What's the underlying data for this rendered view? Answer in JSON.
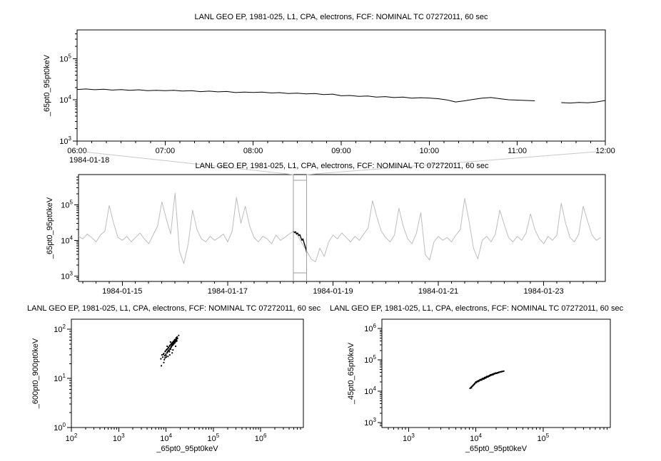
{
  "window": {
    "background": "#ffffff"
  },
  "connector_color": "#c8c8c8",
  "chart_data": [
    {
      "id": "zoom-timeseries",
      "type": "line",
      "title": "LANL GEO EP, 1981-025, L1, CPA, electrons, FCF: NOMINAL TC 07272011, 60 sec",
      "ylabel": "_65pt0_95pt0keV",
      "context_date": "1984-01-18",
      "legend": "off",
      "grid": "off",
      "x_axis": {
        "type": "linear",
        "min": 6,
        "max": 12,
        "minor_step": 0.16667,
        "ticks": [
          {
            "v": 6,
            "label": "06:00"
          },
          {
            "v": 7,
            "label": "07:00"
          },
          {
            "v": 8,
            "label": "08:00"
          },
          {
            "v": 9,
            "label": "09:00"
          },
          {
            "v": 10,
            "label": "10:00"
          },
          {
            "v": 11,
            "label": "11:00"
          },
          {
            "v": 12,
            "label": "12:00"
          }
        ]
      },
      "y_axis": {
        "type": "log",
        "min": 1000,
        "max": 500000,
        "tick_exponents": [
          3,
          4,
          5
        ]
      },
      "series": [
        {
          "name": "_65pt0_95pt0keV",
          "type": "line",
          "color": "#000000",
          "width": 1,
          "x_start": 6.0,
          "x_step": 0.1,
          "values": [
            17900,
            18400,
            17700,
            18100,
            17300,
            17800,
            17100,
            17600,
            16700,
            17100,
            16800,
            17100,
            16400,
            16700,
            15900,
            16300,
            15700,
            16000,
            15100,
            15500,
            15200,
            15500,
            14800,
            15000,
            14300,
            14600,
            14000,
            14300,
            13500,
            13800,
            12600,
            12800,
            12200,
            12400,
            11700,
            12000,
            11400,
            11700,
            11000,
            11300,
            11100,
            10700,
            10000,
            8900,
            9500,
            10300,
            11000,
            11400,
            10700,
            10100,
            9900,
            9700,
            9500,
            null,
            null,
            8600,
            8400,
            8700,
            8500,
            8900,
            9700
          ]
        }
      ]
    },
    {
      "id": "context-overview",
      "type": "line",
      "title": "LANL GEO EP, 1981-025, L1, CPA, electrons, FCF: NOMINAL TC 07272011, 60 sec",
      "ylabel": "_65pt0_95pt0keV",
      "legend": "off",
      "grid": "off",
      "x_axis": {
        "type": "linear",
        "min": 14.17,
        "max": 24.17,
        "minor_step": 0.25,
        "ticks": [
          {
            "v": 15,
            "label": "1984-01-15"
          },
          {
            "v": 17,
            "label": "1984-01-17"
          },
          {
            "v": 19,
            "label": "1984-01-19"
          },
          {
            "v": 21,
            "label": "1984-01-21"
          },
          {
            "v": 23,
            "label": "1984-01-23"
          }
        ]
      },
      "y_axis": {
        "type": "log",
        "min": 700,
        "max": 700000,
        "tick_exponents": [
          3,
          4,
          5
        ]
      },
      "selection": {
        "x_min": 18.25,
        "x_max": 18.5,
        "color": "#9e9e9e"
      },
      "series": [
        {
          "name": "context",
          "type": "line",
          "color": "#bdbdbd",
          "width": 1,
          "x_start": 14.17,
          "x_step": 0.0833,
          "values": [
            13000,
            11000,
            15000,
            12000,
            9000,
            14000,
            18000,
            95000,
            30000,
            12000,
            10000,
            13000,
            9000,
            12000,
            16000,
            11000,
            8000,
            14000,
            25000,
            120000,
            40000,
            15000,
            210000,
            5000,
            2200,
            8000,
            70000,
            20000,
            11000,
            9000,
            13000,
            10000,
            12000,
            15000,
            9000,
            18000,
            160000,
            30000,
            90000,
            25000,
            12000,
            9000,
            13000,
            11000,
            8000,
            14000,
            10000,
            12000,
            15000,
            18000,
            13000,
            8000,
            5000,
            3000,
            2500,
            6000,
            3500,
            9000,
            14000,
            11000,
            16000,
            12000,
            9000,
            13000,
            10000,
            15000,
            22000,
            130000,
            45000,
            18000,
            12000,
            9000,
            14000,
            80000,
            25000,
            11000,
            8000,
            16000,
            60000,
            4000,
            2800,
            9000,
            13000,
            10000,
            12000,
            9000,
            14000,
            20000,
            150000,
            35000,
            6000,
            3000,
            10000,
            13000,
            9000,
            15000,
            70000,
            28000,
            12000,
            9000,
            13000,
            10000,
            16000,
            55000,
            20000,
            11000,
            8000,
            13000,
            10000,
            14000,
            110000,
            30000,
            12000,
            9000,
            15000,
            90000,
            35000,
            14000,
            10000,
            12000
          ]
        },
        {
          "name": "highlight",
          "type": "line",
          "color": "#000000",
          "width": 1.4,
          "points": [
            [
              18.25,
              18000
            ],
            [
              18.27,
              16500
            ],
            [
              18.29,
              17500
            ],
            [
              18.31,
              15000
            ],
            [
              18.33,
              16000
            ],
            [
              18.35,
              13500
            ],
            [
              18.37,
              14500
            ],
            [
              18.39,
              12000
            ],
            [
              18.41,
              10000
            ],
            [
              18.43,
              11000
            ],
            [
              18.45,
              8500
            ],
            [
              18.47,
              7000
            ],
            [
              18.49,
              5500
            ],
            [
              18.5,
              4500
            ]
          ]
        }
      ]
    },
    {
      "id": "scatter-600-900",
      "type": "scatter",
      "title": "LANL GEO EP, 1981-025, L1, CPA, electrons, FCF: NOMINAL TC 07272011, 60 sec",
      "ylabel": "_600pt0_900pt0keV",
      "xlabel": "_65pt0_95pt0keV",
      "legend": "off",
      "grid": "off",
      "x_axis": {
        "type": "log",
        "min": 100,
        "max": 8000000,
        "tick_exponents": [
          2,
          3,
          4,
          5,
          6
        ]
      },
      "y_axis": {
        "type": "log",
        "min": 1,
        "max": 160,
        "tick_exponents": [
          0,
          1,
          2
        ]
      },
      "series": [
        {
          "name": "scatter",
          "type": "scatter",
          "color": "#000000",
          "points": [
            [
              7800,
              25
            ],
            [
              8200,
              30
            ],
            [
              8500,
              27
            ],
            [
              9000,
              32
            ],
            [
              9300,
              29
            ],
            [
              9600,
              35
            ],
            [
              9900,
              31
            ],
            [
              10200,
              38
            ],
            [
              10500,
              33
            ],
            [
              10800,
              40
            ],
            [
              11000,
              36
            ],
            [
              11300,
              42
            ],
            [
              11600,
              38
            ],
            [
              11900,
              45
            ],
            [
              12200,
              40
            ],
            [
              12500,
              48
            ],
            [
              12800,
              43
            ],
            [
              13100,
              50
            ],
            [
              13400,
              46
            ],
            [
              13700,
              52
            ],
            [
              14000,
              48
            ],
            [
              14300,
              55
            ],
            [
              14600,
              50
            ],
            [
              15000,
              58
            ],
            [
              15400,
              53
            ],
            [
              15800,
              60
            ],
            [
              16200,
              56
            ],
            [
              16600,
              62
            ],
            [
              17000,
              58
            ],
            [
              17500,
              65
            ],
            [
              9500,
              26
            ],
            [
              10000,
              29
            ],
            [
              10700,
              34
            ],
            [
              11500,
              37
            ],
            [
              12300,
              41
            ],
            [
              13000,
              44
            ],
            [
              13800,
              49
            ],
            [
              14500,
              52
            ],
            [
              15300,
              57
            ],
            [
              16000,
              59
            ],
            [
              8800,
              31
            ],
            [
              9700,
              36
            ],
            [
              10400,
              39
            ],
            [
              11200,
              43
            ],
            [
              12000,
              47
            ],
            [
              12900,
              51
            ],
            [
              13600,
              54
            ],
            [
              14400,
              57
            ],
            [
              15200,
              61
            ],
            [
              16800,
              64
            ],
            [
              9200,
              24
            ],
            [
              10100,
              27
            ],
            [
              11800,
              35
            ],
            [
              12600,
              39
            ],
            [
              13300,
              47
            ],
            [
              14100,
              51
            ],
            [
              14900,
              56
            ],
            [
              15700,
              62
            ],
            [
              16400,
              67
            ],
            [
              17200,
              70
            ],
            [
              8000,
              18
            ],
            [
              18500,
              75
            ],
            [
              9000,
              21
            ],
            [
              12000,
              30
            ],
            [
              14000,
              38
            ],
            [
              16000,
              45
            ],
            [
              11000,
              28
            ],
            [
              13500,
              33
            ],
            [
              10600,
              45
            ],
            [
              12400,
              55
            ]
          ]
        }
      ]
    },
    {
      "id": "scatter-45-65",
      "type": "scatter",
      "title": "LANL GEO EP, 1981-025, L1, CPA, electrons, FCF: NOMINAL TC 07272011, 60 sec",
      "ylabel": "_45pt0_65pt0keV",
      "xlabel": "_65pt0_95pt0keV",
      "legend": "off",
      "grid": "off",
      "x_axis": {
        "type": "log",
        "min": 400,
        "max": 1000000,
        "tick_exponents": [
          3,
          4,
          5
        ]
      },
      "y_axis": {
        "type": "log",
        "min": 700,
        "max": 2000000,
        "tick_exponents": [
          3,
          4,
          5,
          6
        ]
      },
      "series": [
        {
          "name": "scatter",
          "type": "scatter",
          "color": "#000000",
          "points": [
            [
              10000,
              20000
            ],
            [
              10500,
              21000
            ],
            [
              11000,
              22000
            ],
            [
              11500,
              23500
            ],
            [
              12000,
              24000
            ],
            [
              12500,
              25500
            ],
            [
              13000,
              26000
            ],
            [
              13500,
              27500
            ],
            [
              14000,
              28000
            ],
            [
              14500,
              29500
            ],
            [
              15000,
              30000
            ],
            [
              15500,
              31000
            ],
            [
              16000,
              32000
            ],
            [
              16500,
              33500
            ],
            [
              17000,
              34000
            ],
            [
              17500,
              35000
            ],
            [
              18000,
              35500
            ],
            [
              18500,
              36500
            ],
            [
              19000,
              37000
            ],
            [
              19500,
              38000
            ],
            [
              20000,
              38500
            ],
            [
              21000,
              39500
            ],
            [
              22000,
              40500
            ],
            [
              23000,
              41500
            ],
            [
              24000,
              42500
            ],
            [
              25000,
              43000
            ],
            [
              26000,
              44000
            ],
            [
              10200,
              19000
            ],
            [
              11200,
              21500
            ],
            [
              12200,
              23000
            ],
            [
              13200,
              25000
            ],
            [
              14200,
              27000
            ],
            [
              15200,
              29000
            ],
            [
              16200,
              31500
            ],
            [
              17200,
              33000
            ],
            [
              18200,
              34500
            ],
            [
              19200,
              36500
            ],
            [
              20500,
              37500
            ],
            [
              21500,
              39000
            ],
            [
              23500,
              42000
            ],
            [
              9000,
              15000
            ],
            [
              8500,
              13500
            ],
            [
              9500,
              17000
            ],
            [
              8800,
              14500
            ],
            [
              9200,
              16000
            ],
            [
              8200,
              12500
            ],
            [
              9800,
              18500
            ],
            [
              8600,
              13000
            ],
            [
              9400,
              16500
            ],
            [
              9100,
              15500
            ],
            [
              12800,
              24500
            ],
            [
              13800,
              26500
            ],
            [
              15800,
              30500
            ],
            [
              17800,
              34200
            ],
            [
              19800,
              37800
            ],
            [
              11800,
              22800
            ],
            [
              14800,
              28800
            ],
            [
              16800,
              32800
            ],
            [
              18800,
              36200
            ],
            [
              22500,
              41000
            ],
            [
              10800,
              20500
            ],
            [
              13300,
              25800
            ],
            [
              16300,
              31800
            ],
            [
              21800,
              40000
            ],
            [
              9600,
              17800
            ],
            [
              8400,
              12800
            ],
            [
              24500,
              42800
            ]
          ]
        }
      ]
    }
  ]
}
